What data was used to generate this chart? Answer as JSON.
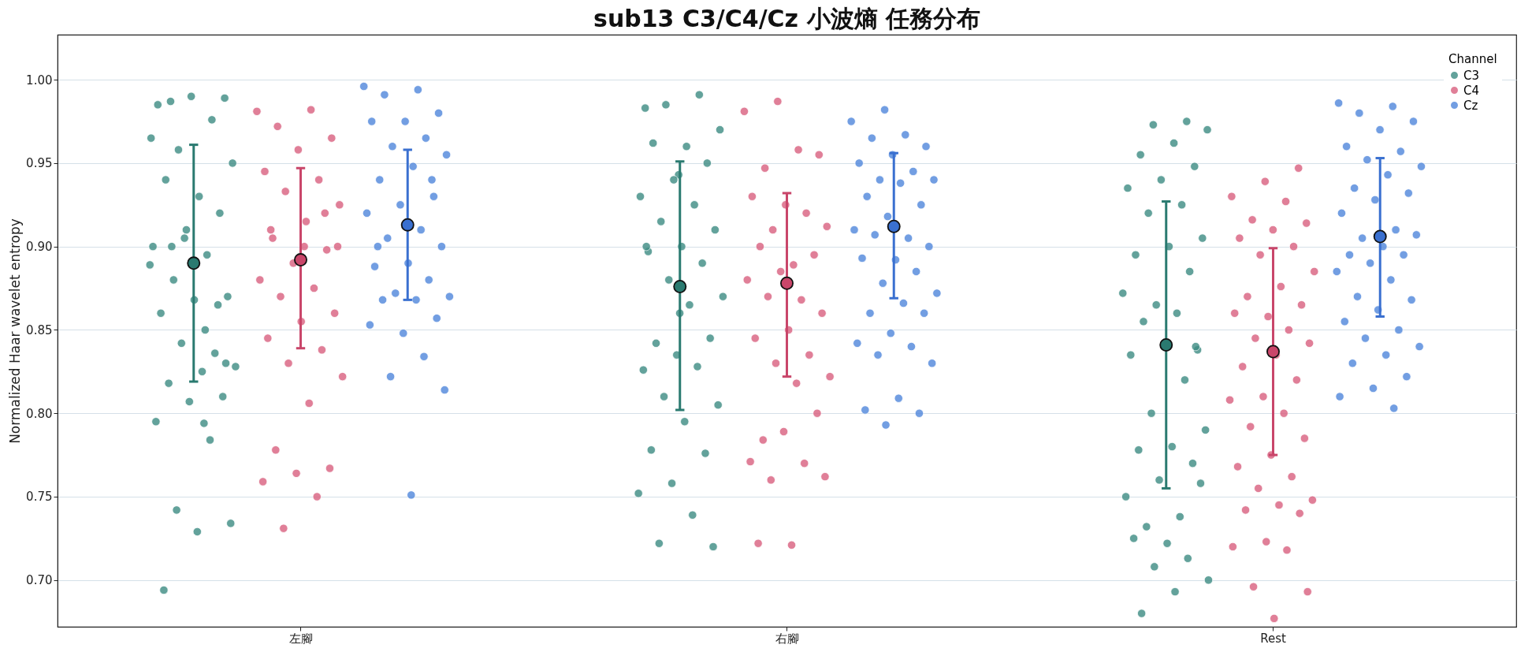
{
  "chart_data": {
    "type": "scatter",
    "title": "sub13 C3/C4/Cz 小波熵 任務分布",
    "ylabel": "Normalized Haar wavelet entropy",
    "legend_title": "Channel",
    "legend": "top right",
    "grid": "y",
    "marker": "circle",
    "categories": [
      "左腳",
      "右腳",
      "Rest"
    ],
    "ylim": [
      0.672,
      1.027
    ],
    "yticks": [
      {
        "value": 0.7,
        "label": "0.70"
      },
      {
        "value": 0.75,
        "label": "0.75"
      },
      {
        "value": 0.8,
        "label": "0.80"
      },
      {
        "value": 0.85,
        "label": "0.85"
      },
      {
        "value": 0.9,
        "label": "0.90"
      },
      {
        "value": 0.95,
        "label": "0.95"
      },
      {
        "value": 1.0,
        "label": "1.00"
      }
    ],
    "series": [
      {
        "name": "C3",
        "color": "#3d8c83",
        "x": [
          "左腳",
          "左腳",
          "左腳",
          "左腳",
          "左腳",
          "左腳",
          "左腳",
          "左腳",
          "左腳",
          "左腳",
          "左腳",
          "左腳",
          "左腳",
          "左腳",
          "左腳",
          "左腳",
          "左腳",
          "左腳",
          "左腳",
          "左腳",
          "左腳",
          "左腳",
          "左腳",
          "左腳",
          "左腳",
          "左腳",
          "左腳",
          "左腳",
          "左腳",
          "左腳",
          "左腳",
          "左腳",
          "左腳",
          "左腳",
          "左腳",
          "左腳",
          "左腳",
          "左腳",
          "右腳",
          "右腳",
          "右腳",
          "右腳",
          "右腳",
          "右腳",
          "右腳",
          "右腳",
          "右腳",
          "右腳",
          "右腳",
          "右腳",
          "右腳",
          "右腳",
          "右腳",
          "右腳",
          "右腳",
          "右腳",
          "右腳",
          "右腳",
          "右腳",
          "右腳",
          "右腳",
          "右腳",
          "右腳",
          "右腳",
          "右腳",
          "右腳",
          "右腳",
          "右腳",
          "右腳",
          "右腳",
          "右腳",
          "右腳",
          "右腳",
          "右腳",
          "Rest",
          "Rest",
          "Rest",
          "Rest",
          "Rest",
          "Rest",
          "Rest",
          "Rest",
          "Rest",
          "Rest",
          "Rest",
          "Rest",
          "Rest",
          "Rest",
          "Rest",
          "Rest",
          "Rest",
          "Rest",
          "Rest",
          "Rest",
          "Rest",
          "Rest",
          "Rest",
          "Rest",
          "Rest",
          "Rest",
          "Rest",
          "Rest",
          "Rest",
          "Rest",
          "Rest",
          "Rest",
          "Rest",
          "Rest",
          "Rest",
          "Rest",
          "Rest",
          "Rest",
          "Rest",
          "Rest"
        ],
        "values": [
          0.889,
          0.794,
          0.987,
          0.989,
          0.99,
          0.985,
          0.976,
          0.958,
          0.95,
          0.93,
          0.94,
          0.92,
          0.91,
          0.9,
          0.895,
          0.88,
          0.87,
          0.868,
          0.86,
          0.836,
          0.842,
          0.828,
          0.825,
          0.818,
          0.81,
          0.807,
          0.795,
          0.784,
          0.742,
          0.734,
          0.729,
          0.694,
          0.865,
          0.905,
          0.965,
          0.85,
          0.9,
          0.83,
          0.943,
          0.983,
          0.991,
          0.985,
          0.97,
          0.96,
          0.962,
          0.95,
          0.94,
          0.93,
          0.925,
          0.915,
          0.91,
          0.9,
          0.897,
          0.89,
          0.88,
          0.87,
          0.865,
          0.842,
          0.845,
          0.835,
          0.826,
          0.828,
          0.81,
          0.805,
          0.795,
          0.778,
          0.776,
          0.758,
          0.752,
          0.739,
          0.722,
          0.72,
          0.86,
          0.9,
          0.975,
          0.973,
          0.97,
          0.962,
          0.955,
          0.948,
          0.94,
          0.935,
          0.925,
          0.92,
          0.905,
          0.9,
          0.895,
          0.885,
          0.865,
          0.872,
          0.86,
          0.855,
          0.838,
          0.84,
          0.835,
          0.82,
          0.8,
          0.79,
          0.78,
          0.778,
          0.77,
          0.76,
          0.75,
          0.738,
          0.732,
          0.758,
          0.722,
          0.725,
          0.713,
          0.708,
          0.7,
          0.693,
          0.68,
          0.84
        ]
      },
      {
        "name": "C4",
        "color": "#d9607f",
        "x": [
          "左腳",
          "左腳",
          "左腳",
          "左腳",
          "左腳",
          "左腳",
          "左腳",
          "左腳",
          "左腳",
          "左腳",
          "左腳",
          "左腳",
          "左腳",
          "左腳",
          "左腳",
          "左腳",
          "左腳",
          "左腳",
          "左腳",
          "左腳",
          "左腳",
          "左腳",
          "左腳",
          "左腳",
          "左腳",
          "左腳",
          "左腳",
          "左腳",
          "左腳",
          "左腳",
          "左腳",
          "左腳",
          "左腳",
          "右腳",
          "右腳",
          "右腳",
          "右腳",
          "右腳",
          "右腳",
          "右腳",
          "右腳",
          "右腳",
          "右腳",
          "右腳",
          "右腳",
          "右腳",
          "右腳",
          "右腳",
          "右腳",
          "右腳",
          "右腳",
          "右腳",
          "右腳",
          "右腳",
          "右腳",
          "右腳",
          "右腳",
          "右腳",
          "右腳",
          "右腳",
          "右腳",
          "右腳",
          "右腳",
          "右腳",
          "右腳",
          "右腳",
          "Rest",
          "Rest",
          "Rest",
          "Rest",
          "Rest",
          "Rest",
          "Rest",
          "Rest",
          "Rest",
          "Rest",
          "Rest",
          "Rest",
          "Rest",
          "Rest",
          "Rest",
          "Rest",
          "Rest",
          "Rest",
          "Rest",
          "Rest",
          "Rest",
          "Rest",
          "Rest",
          "Rest",
          "Rest",
          "Rest",
          "Rest",
          "Rest",
          "Rest",
          "Rest",
          "Rest",
          "Rest",
          "Rest",
          "Rest",
          "Rest",
          "Rest",
          "Rest",
          "Rest",
          "Rest",
          "Rest",
          "Rest"
        ],
        "values": [
          0.981,
          0.982,
          0.972,
          0.965,
          0.958,
          0.945,
          0.94,
          0.933,
          0.925,
          0.915,
          0.905,
          0.898,
          0.89,
          0.88,
          0.875,
          0.87,
          0.86,
          0.855,
          0.845,
          0.838,
          0.83,
          0.822,
          0.806,
          0.778,
          0.767,
          0.764,
          0.759,
          0.75,
          0.731,
          0.9,
          0.9,
          0.91,
          0.92,
          0.987,
          0.981,
          0.958,
          0.947,
          0.955,
          0.925,
          0.93,
          0.92,
          0.91,
          0.912,
          0.889,
          0.9,
          0.895,
          0.885,
          0.88,
          0.868,
          0.87,
          0.86,
          0.85,
          0.845,
          0.835,
          0.83,
          0.822,
          0.818,
          0.784,
          0.8,
          0.789,
          0.771,
          0.77,
          0.76,
          0.762,
          0.721,
          0.722,
          0.947,
          0.939,
          0.93,
          0.927,
          0.916,
          0.914,
          0.91,
          0.905,
          0.9,
          0.895,
          0.885,
          0.876,
          0.87,
          0.865,
          0.858,
          0.86,
          0.85,
          0.845,
          0.842,
          0.835,
          0.828,
          0.82,
          0.81,
          0.808,
          0.8,
          0.792,
          0.785,
          0.775,
          0.768,
          0.762,
          0.755,
          0.748,
          0.745,
          0.742,
          0.74,
          0.723,
          0.72,
          0.718,
          0.696,
          0.693,
          0.677
        ]
      },
      {
        "name": "Cz",
        "color": "#4f86dc",
        "x": [
          "左腳",
          "左腳",
          "左腳",
          "左腳",
          "左腳",
          "左腳",
          "左腳",
          "左腳",
          "左腳",
          "左腳",
          "左腳",
          "左腳",
          "左腳",
          "左腳",
          "左腳",
          "左腳",
          "左腳",
          "左腳",
          "左腳",
          "左腳",
          "左腳",
          "左腳",
          "左腳",
          "左腳",
          "左腳",
          "左腳",
          "左腳",
          "左腳",
          "左腳",
          "左腳",
          "左腳",
          "左腳",
          "左腳",
          "右腳",
          "右腳",
          "右腳",
          "右腳",
          "右腳",
          "右腳",
          "右腳",
          "右腳",
          "右腳",
          "右腳",
          "右腳",
          "右腳",
          "右腳",
          "右腳",
          "右腳",
          "右腳",
          "右腳",
          "右腳",
          "右腳",
          "右腳",
          "右腳",
          "右腳",
          "右腳",
          "右腳",
          "右腳",
          "右腳",
          "右腳",
          "右腳",
          "右腳",
          "右腳",
          "右腳",
          "右腳",
          "右腳",
          "右腳",
          "右腳",
          "Rest",
          "Rest",
          "Rest",
          "Rest",
          "Rest",
          "Rest",
          "Rest",
          "Rest",
          "Rest",
          "Rest",
          "Rest",
          "Rest",
          "Rest",
          "Rest",
          "Rest",
          "Rest",
          "Rest",
          "Rest",
          "Rest",
          "Rest",
          "Rest",
          "Rest",
          "Rest",
          "Rest",
          "Rest",
          "Rest",
          "Rest",
          "Rest",
          "Rest",
          "Rest",
          "Rest",
          "Rest",
          "Rest",
          "Rest",
          "Rest",
          "Rest"
        ],
        "values": [
          0.996,
          0.994,
          0.991,
          0.98,
          0.975,
          0.975,
          0.965,
          0.96,
          0.955,
          0.948,
          0.94,
          0.93,
          0.925,
          0.92,
          0.91,
          0.905,
          0.9,
          0.89,
          0.888,
          0.88,
          0.872,
          0.87,
          0.868,
          0.868,
          0.857,
          0.848,
          0.853,
          0.834,
          0.822,
          0.814,
          0.751,
          0.9,
          0.94,
          0.982,
          0.975,
          0.967,
          0.965,
          0.96,
          0.955,
          0.95,
          0.945,
          0.94,
          0.94,
          0.938,
          0.93,
          0.925,
          0.918,
          0.91,
          0.905,
          0.907,
          0.9,
          0.892,
          0.893,
          0.885,
          0.878,
          0.872,
          0.866,
          0.86,
          0.86,
          0.848,
          0.842,
          0.84,
          0.835,
          0.83,
          0.809,
          0.802,
          0.8,
          0.793,
          0.986,
          0.984,
          0.98,
          0.975,
          0.97,
          0.96,
          0.957,
          0.952,
          0.948,
          0.943,
          0.935,
          0.932,
          0.928,
          0.92,
          0.91,
          0.905,
          0.907,
          0.9,
          0.895,
          0.895,
          0.89,
          0.885,
          0.88,
          0.87,
          0.868,
          0.862,
          0.855,
          0.85,
          0.845,
          0.84,
          0.835,
          0.83,
          0.822,
          0.815,
          0.81,
          0.803
        ]
      },
      {
        "color": "#2a7a70",
        "x": [
          "左腳",
          "右腳",
          "Rest"
        ],
        "values": [
          0.89,
          0.876,
          0.841
        ],
        "errors": [
          [
            0.819,
            0.961
          ],
          [
            0.802,
            0.951
          ],
          [
            0.755,
            0.927
          ]
        ]
      },
      {
        "color": "#c9466a",
        "x": [
          "左腳",
          "右腳",
          "Rest"
        ],
        "values": [
          0.892,
          0.878,
          0.837
        ],
        "errors": [
          [
            0.839,
            0.947
          ],
          [
            0.822,
            0.932
          ],
          [
            0.775,
            0.899
          ]
        ]
      },
      {
        "color": "#3a70d0",
        "x": [
          "左腳",
          "右腳",
          "Rest"
        ],
        "values": [
          0.913,
          0.912,
          0.906
        ],
        "errors": [
          [
            0.868,
            0.958
          ],
          [
            0.869,
            0.956
          ],
          [
            0.858,
            0.953
          ]
        ]
      }
    ]
  }
}
